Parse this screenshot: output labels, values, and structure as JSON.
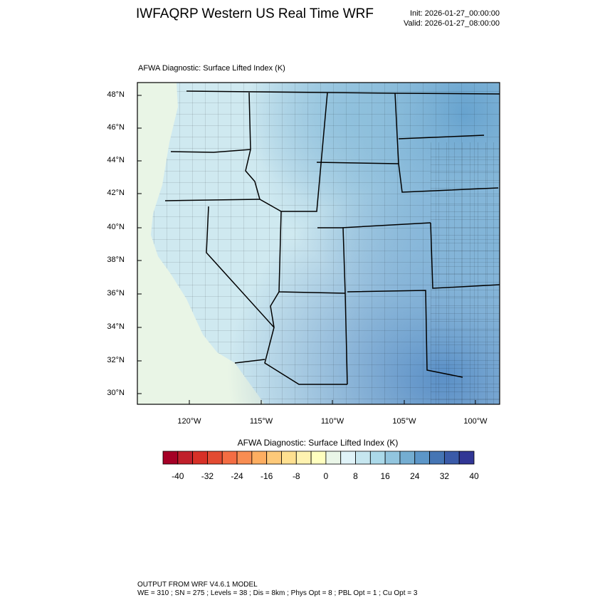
{
  "header": {
    "title": "IWFAQRP Western US Real Time WRF",
    "init": "Init: 2026-01-27_00:00:00",
    "valid": "Valid: 2026-01-27_08:00:00"
  },
  "map": {
    "subtitle": "AFWA Diagnostic: Surface Lifted Index   (K)",
    "lat_labels": [
      "48°N",
      "46°N",
      "44°N",
      "42°N",
      "40°N",
      "38°N",
      "36°N",
      "34°N",
      "32°N",
      "30°N"
    ],
    "lon_labels": [
      "120°W",
      "115°W",
      "110°W",
      "105°W",
      "100°W"
    ],
    "colors": {
      "ocean": "#e9f5e6",
      "land_base": "#cfe9f0",
      "land_mid": "#b9dceb",
      "land_dark": "#8cbfdc",
      "land_deep": "#5d9ccb",
      "border": "#000000"
    }
  },
  "colorbar": {
    "title": "AFWA Diagnostic: Surface Lifted Index  (K)",
    "colors": [
      "#a50026",
      "#c0202b",
      "#d73027",
      "#e34b32",
      "#f46d43",
      "#f88d52",
      "#fdae61",
      "#fdc979",
      "#fee090",
      "#fef2b0",
      "#ffffbf",
      "#eaf6e8",
      "#e0f3f8",
      "#c6e6ef",
      "#abd9e9",
      "#92c5de",
      "#74add1",
      "#5c96c8",
      "#4575b4",
      "#3a5aa8",
      "#313695"
    ],
    "labels": [
      "-40",
      "-32",
      "-24",
      "-16",
      "-8",
      "0",
      "8",
      "16",
      "24",
      "32",
      "40"
    ]
  },
  "footer": {
    "line1": "OUTPUT FROM WRF V4.6.1 MODEL",
    "line2": "WE = 310 ; SN = 275 ; Levels = 38 ; Dis = 8km ; Phys Opt = 8 ; PBL Opt = 1 ; Cu Opt = 3"
  }
}
